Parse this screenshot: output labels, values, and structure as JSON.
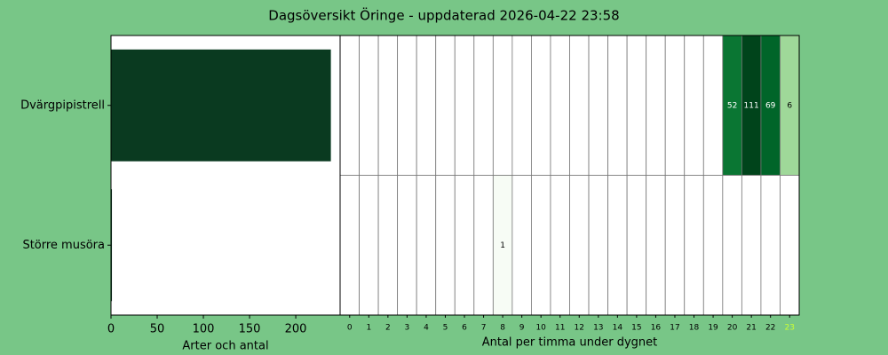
{
  "title": "Dagsöversikt Öringe - uppdaterad 2026-04-22 23:58",
  "chart_data": [
    {
      "type": "hbar",
      "categories": [
        "Dvärgpipistrell",
        "Större musöra"
      ],
      "values": [
        238,
        1
      ],
      "color": "#0a3a20",
      "xlim": [
        0,
        248
      ],
      "xticks": [
        0,
        50,
        100,
        150,
        200
      ],
      "xlabel": "Arter och antal"
    },
    {
      "type": "heatmap",
      "xlabel": "Antal per timma under dygnet",
      "x_categories": [
        "0",
        "1",
        "2",
        "3",
        "4",
        "5",
        "6",
        "7",
        "8",
        "9",
        "10",
        "11",
        "12",
        "13",
        "14",
        "15",
        "16",
        "17",
        "18",
        "19",
        "20",
        "21",
        "22",
        "23"
      ],
      "rows": [
        [
          0,
          0,
          0,
          0,
          0,
          0,
          0,
          0,
          0,
          0,
          0,
          0,
          0,
          0,
          0,
          0,
          0,
          0,
          0,
          0,
          52,
          111,
          69,
          6
        ],
        [
          0,
          0,
          0,
          0,
          0,
          0,
          0,
          0,
          1,
          0,
          0,
          0,
          0,
          0,
          0,
          0,
          0,
          0,
          0,
          0,
          0,
          0,
          0,
          0
        ]
      ],
      "color_scale": "log",
      "colormap": [
        "#f7fcf5",
        "#e5f5e0",
        "#c7e9c0",
        "#a1d99b",
        "#74c476",
        "#41ab5d",
        "#238b45",
        "#006d2c",
        "#00441b"
      ],
      "highlight_index": 23,
      "highlight_color": "#ccff33"
    }
  ]
}
